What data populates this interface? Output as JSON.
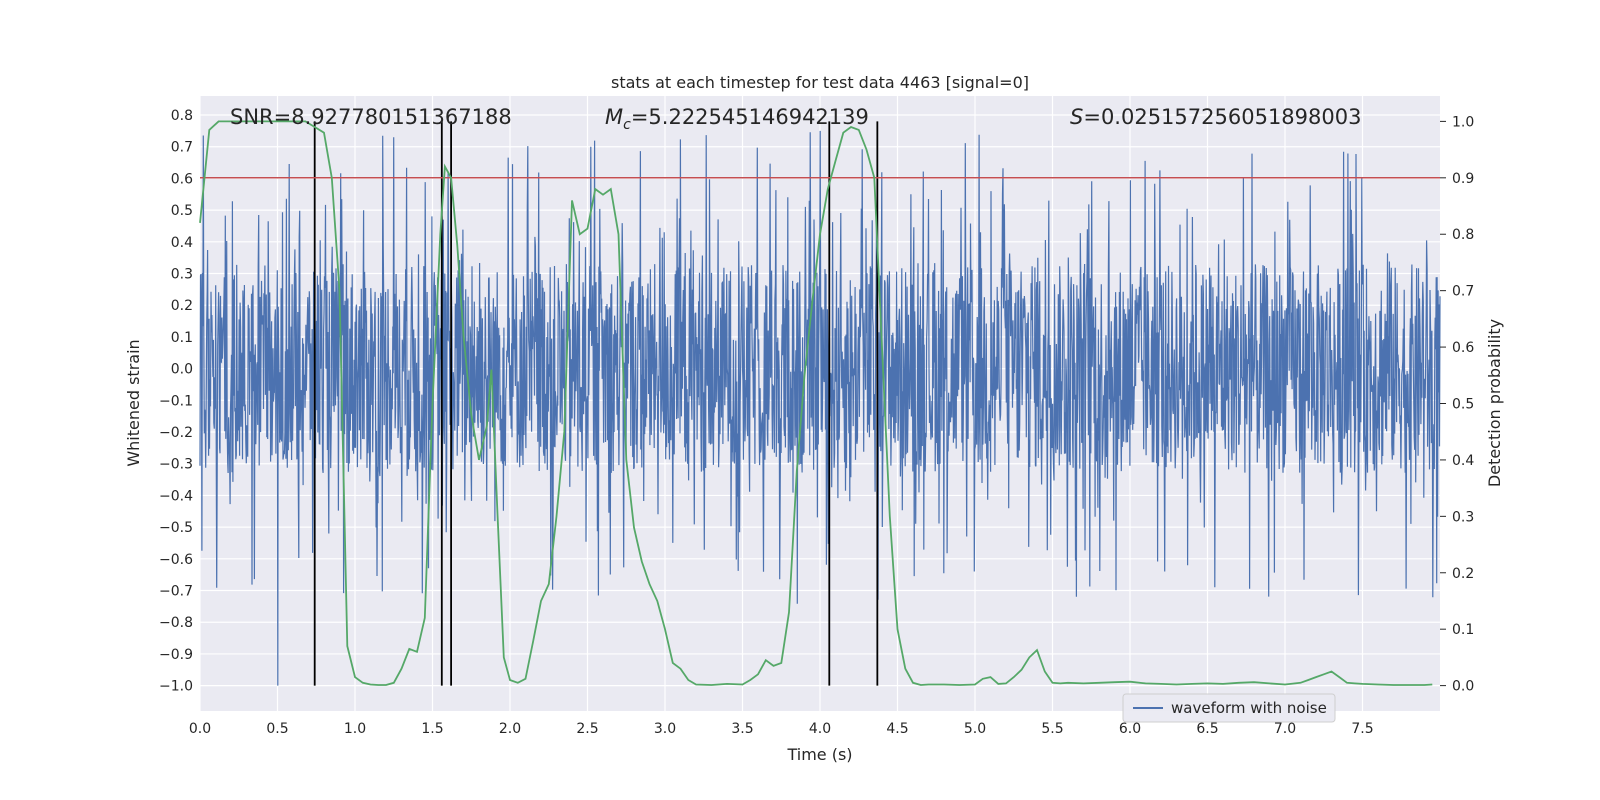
{
  "chart_data": {
    "type": "line",
    "title": "stats at each timestep for test data 4463 [signal=0]",
    "xlabel": "Time (s)",
    "ylabel": "Whitened strain",
    "y2label": "Detection probability",
    "xlim": [
      0.0,
      8.0
    ],
    "ylim": [
      -1.08,
      0.86
    ],
    "y2lim": [
      -0.045,
      1.045
    ],
    "xticks": [
      "0.0",
      "0.5",
      "1.0",
      "1.5",
      "2.0",
      "2.5",
      "3.0",
      "3.5",
      "4.0",
      "4.5",
      "5.0",
      "5.5",
      "6.0",
      "6.5",
      "7.0",
      "7.5"
    ],
    "yticks": [
      "0.8",
      "0.7",
      "0.6",
      "0.5",
      "0.4",
      "0.3",
      "0.2",
      "0.1",
      "0.0",
      "-0.1",
      "-0.2",
      "-0.3",
      "-0.4",
      "-0.5",
      "-0.6",
      "-0.7",
      "-0.8",
      "-0.9",
      "-1.0"
    ],
    "y2ticks": [
      "0.0",
      "0.1",
      "0.2",
      "0.3",
      "0.4",
      "0.5",
      "0.6",
      "0.7",
      "0.8",
      "0.9",
      "1.0"
    ],
    "grid": true,
    "legend": {
      "placement": "lower-right",
      "entries": [
        "waveform with noise"
      ]
    },
    "annotations": {
      "snr": "SNR=8.927780151367188",
      "mc_symbol": "M",
      "mc_sub": "c",
      "mc_value": "=5.222545146942139",
      "s_symbol": "S",
      "s_value": "=0.025157256051898003"
    },
    "threshold": 0.9,
    "vlines": [
      0.74,
      1.56,
      1.62,
      4.06,
      4.37
    ],
    "waveform": {
      "name": "waveform with noise",
      "x_range": [
        0.0,
        8.0
      ],
      "samples": 2600,
      "core_amplitude": 0.33,
      "peak_min": -1.0,
      "peak_max": 0.75
    },
    "probability": {
      "x": [
        0.0,
        0.06,
        0.12,
        0.2,
        0.3,
        0.4,
        0.5,
        0.6,
        0.68,
        0.74,
        0.8,
        0.85,
        0.9,
        0.95,
        1.0,
        1.05,
        1.1,
        1.15,
        1.2,
        1.25,
        1.3,
        1.35,
        1.4,
        1.45,
        1.5,
        1.55,
        1.58,
        1.62,
        1.66,
        1.7,
        1.75,
        1.8,
        1.85,
        1.88,
        1.92,
        1.96,
        2.0,
        2.05,
        2.1,
        2.15,
        2.2,
        2.25,
        2.3,
        2.35,
        2.4,
        2.45,
        2.5,
        2.55,
        2.6,
        2.65,
        2.7,
        2.75,
        2.8,
        2.85,
        2.9,
        2.95,
        3.0,
        3.05,
        3.1,
        3.15,
        3.2,
        3.3,
        3.4,
        3.5,
        3.55,
        3.6,
        3.65,
        3.7,
        3.75,
        3.8,
        3.85,
        3.9,
        3.95,
        4.0,
        4.05,
        4.1,
        4.15,
        4.2,
        4.25,
        4.3,
        4.35,
        4.4,
        4.45,
        4.5,
        4.55,
        4.6,
        4.65,
        4.7,
        4.8,
        4.9,
        5.0,
        5.05,
        5.1,
        5.15,
        5.2,
        5.25,
        5.3,
        5.35,
        5.4,
        5.45,
        5.5,
        5.55,
        5.6,
        5.7,
        5.8,
        5.9,
        6.0,
        6.1,
        6.2,
        6.3,
        6.4,
        6.5,
        6.6,
        6.7,
        6.8,
        6.9,
        7.0,
        7.1,
        7.15,
        7.2,
        7.25,
        7.3,
        7.35,
        7.4,
        7.45,
        7.5,
        7.6,
        7.7,
        7.8,
        7.9,
        7.95
      ],
      "values": [
        0.82,
        0.985,
        1.0,
        1.0,
        1.0,
        1.0,
        1.0,
        1.0,
        1.0,
        0.99,
        0.98,
        0.9,
        0.7,
        0.07,
        0.015,
        0.005,
        0.002,
        0.001,
        0.001,
        0.005,
        0.03,
        0.065,
        0.06,
        0.12,
        0.5,
        0.8,
        0.92,
        0.9,
        0.78,
        0.62,
        0.48,
        0.4,
        0.46,
        0.56,
        0.3,
        0.05,
        0.01,
        0.005,
        0.012,
        0.08,
        0.15,
        0.18,
        0.3,
        0.45,
        0.86,
        0.8,
        0.81,
        0.88,
        0.87,
        0.88,
        0.8,
        0.4,
        0.28,
        0.22,
        0.18,
        0.15,
        0.1,
        0.04,
        0.03,
        0.01,
        0.002,
        0.001,
        0.003,
        0.002,
        0.01,
        0.02,
        0.045,
        0.035,
        0.04,
        0.13,
        0.38,
        0.55,
        0.68,
        0.8,
        0.88,
        0.93,
        0.98,
        0.99,
        0.985,
        0.95,
        0.9,
        0.6,
        0.3,
        0.1,
        0.03,
        0.005,
        0.001,
        0.002,
        0.002,
        0.001,
        0.002,
        0.012,
        0.015,
        0.003,
        0.004,
        0.015,
        0.028,
        0.05,
        0.063,
        0.025,
        0.005,
        0.004,
        0.005,
        0.004,
        0.005,
        0.006,
        0.007,
        0.004,
        0.003,
        0.002,
        0.003,
        0.004,
        0.003,
        0.005,
        0.006,
        0.004,
        0.002,
        0.005,
        0.01,
        0.015,
        0.02,
        0.025,
        0.015,
        0.005,
        0.004,
        0.003,
        0.002,
        0.001,
        0.001,
        0.001,
        0.002
      ]
    },
    "colors": {
      "background": "#eaeaf2",
      "grid": "#ffffff",
      "waveform": "#4c72b0",
      "probability": "#55a868",
      "threshold": "#c44e52",
      "vline": "#000000"
    }
  }
}
